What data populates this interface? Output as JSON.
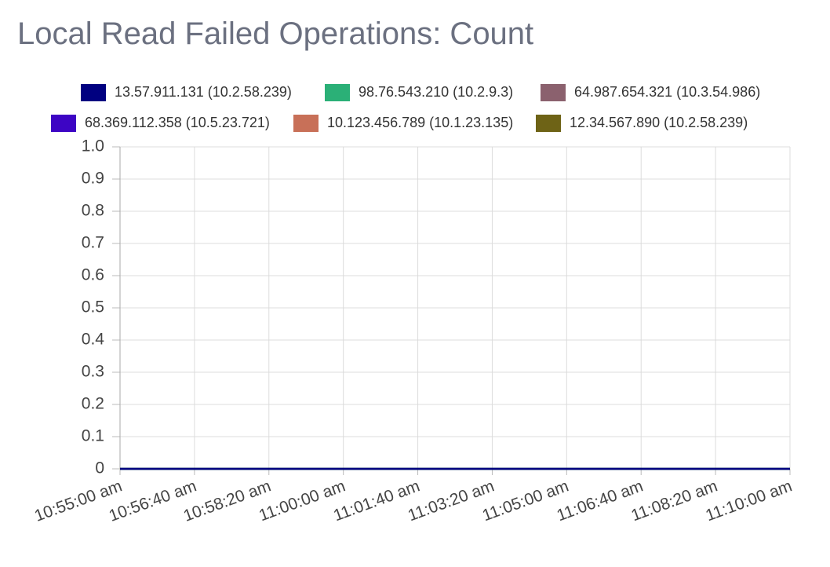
{
  "chart_data": {
    "type": "line",
    "title": "Local Read Failed Operations: Count",
    "categories": [
      "10:55:00 am",
      "10:56:40 am",
      "10:58:20 am",
      "11:00:00 am",
      "11:01:40 am",
      "11:03:20 am",
      "11:05:00 am",
      "11:06:40 am",
      "11:08:20 am",
      "11:10:00 am"
    ],
    "series": [
      {
        "name": "13.57.911.131 (10.2.58.239)",
        "color": "#000080",
        "values": [
          0,
          0,
          0,
          0,
          0,
          0,
          0,
          0,
          0,
          0
        ]
      },
      {
        "name": "98.76.543.210 (10.2.9.3)",
        "color": "#2bb077",
        "values": [
          0,
          0,
          0,
          0,
          0,
          0,
          0,
          0,
          0,
          0
        ]
      },
      {
        "name": "64.987.654.321 (10.3.54.986)",
        "color": "#8b616e",
        "values": [
          0,
          0,
          0,
          0,
          0,
          0,
          0,
          0,
          0,
          0
        ]
      },
      {
        "name": "68.369.112.358 (10.5.23.721)",
        "color": "#3d05c4",
        "values": [
          0,
          0,
          0,
          0,
          0,
          0,
          0,
          0,
          0,
          0
        ]
      },
      {
        "name": "10.123.456.789 (10.1.23.135)",
        "color": "#c87058",
        "values": [
          0,
          0,
          0,
          0,
          0,
          0,
          0,
          0,
          0,
          0
        ]
      },
      {
        "name": "12.34.567.890 (10.2.58.239)",
        "color": "#6e6316",
        "values": [
          0,
          0,
          0,
          0,
          0,
          0,
          0,
          0,
          0,
          0
        ]
      }
    ],
    "ylim": [
      0,
      1
    ],
    "yticks": [
      0,
      0.1,
      0.2,
      0.3,
      0.4,
      0.5,
      0.6,
      0.7,
      0.8,
      0.9,
      {
        "value": 1,
        "label": "1.0"
      }
    ],
    "grid": true,
    "legend": "top"
  }
}
